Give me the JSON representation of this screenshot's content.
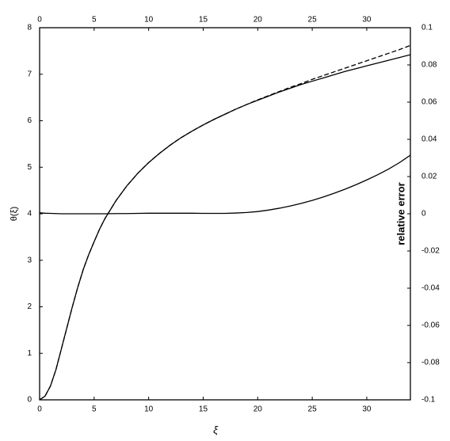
{
  "chart_data": {
    "type": "line",
    "x_label": "ξ",
    "y_label": "θ(ξ)",
    "y2_label": "relative error",
    "x": [
      0,
      0.5,
      1,
      1.5,
      2,
      2.5,
      3,
      3.5,
      4,
      4.5,
      5,
      5.5,
      6,
      7,
      8,
      9,
      10,
      11,
      12,
      13,
      14,
      15,
      16,
      17,
      18,
      19,
      20,
      21,
      22,
      23,
      24,
      25,
      26,
      27,
      28,
      29,
      30,
      31,
      32,
      33,
      34
    ],
    "series": [
      {
        "color": "#000000",
        "dash": false,
        "values": [
          0,
          0.08,
          0.3,
          0.65,
          1.1,
          1.55,
          2.0,
          2.42,
          2.8,
          3.12,
          3.4,
          3.67,
          3.9,
          4.28,
          4.6,
          4.87,
          5.1,
          5.3,
          5.48,
          5.64,
          5.78,
          5.91,
          6.03,
          6.14,
          6.25,
          6.35,
          6.44,
          6.53,
          6.62,
          6.7,
          6.78,
          6.85,
          6.92,
          6.99,
          7.06,
          7.12,
          7.18,
          7.24,
          7.3,
          7.36,
          7.42
        ]
      },
      {
        "color": "#000000",
        "dash": true,
        "values": [
          0,
          0.08,
          0.3,
          0.65,
          1.1,
          1.55,
          2.0,
          2.42,
          2.8,
          3.12,
          3.4,
          3.67,
          3.9,
          4.28,
          4.6,
          4.87,
          5.1,
          5.3,
          5.48,
          5.64,
          5.78,
          5.91,
          6.03,
          6.14,
          6.25,
          6.35,
          6.45,
          6.54,
          6.63,
          6.72,
          6.8,
          6.89,
          6.97,
          7.05,
          7.13,
          7.21,
          7.29,
          7.37,
          7.45,
          7.53,
          7.62
        ]
      },
      {
        "color": "#000000",
        "dash": false,
        "axis": "y2",
        "values": [
          0.0005,
          0.0003,
          0.0002,
          0.0001,
          0,
          0,
          0,
          0,
          0,
          0,
          0,
          0,
          0,
          0.0001,
          0.0001,
          0.0002,
          0.0003,
          0.0003,
          0.0003,
          0.0003,
          0.0003,
          0.0002,
          0.0002,
          0.0002,
          0.0004,
          0.0007,
          0.0012,
          0.002,
          0.003,
          0.0042,
          0.0056,
          0.0072,
          0.009,
          0.011,
          0.0132,
          0.0156,
          0.0182,
          0.021,
          0.024,
          0.0275,
          0.0315
        ]
      }
    ],
    "xlim": [
      0,
      34
    ],
    "xticks": [
      0,
      5,
      10,
      15,
      20,
      25,
      30
    ],
    "ylim": [
      0,
      8
    ],
    "yticks": [
      0,
      1,
      2,
      3,
      4,
      5,
      6,
      7,
      8
    ],
    "y2lim": [
      -0.1,
      0.1
    ],
    "y2ticks": [
      -0.1,
      -0.08,
      -0.06,
      -0.04,
      -0.02,
      0,
      0.02,
      0.04,
      0.06,
      0.08,
      0.1
    ]
  }
}
